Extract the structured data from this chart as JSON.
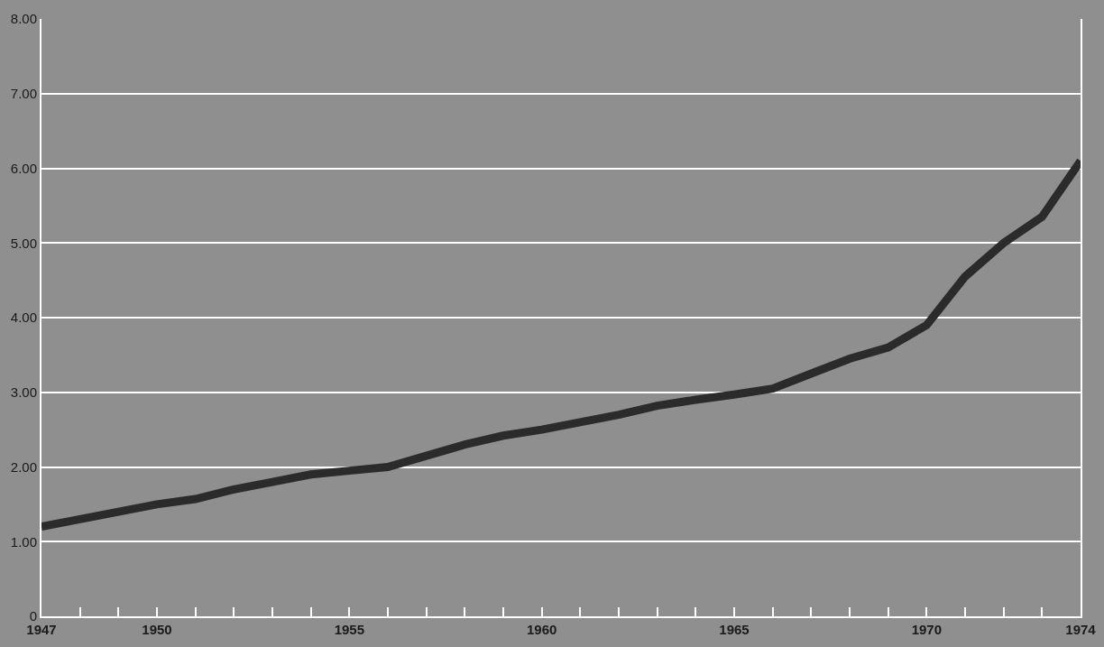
{
  "chart_data": {
    "type": "line",
    "x": [
      1947,
      1948,
      1949,
      1950,
      1951,
      1952,
      1953,
      1954,
      1955,
      1956,
      1957,
      1958,
      1959,
      1960,
      1961,
      1962,
      1963,
      1964,
      1965,
      1966,
      1967,
      1968,
      1969,
      1970,
      1971,
      1972,
      1973,
      1974
    ],
    "series": [
      {
        "color": "#2b2b2b",
        "values": [
          1.2,
          1.3,
          1.4,
          1.5,
          1.57,
          1.7,
          1.8,
          1.9,
          1.95,
          2.0,
          2.15,
          2.3,
          2.42,
          2.5,
          2.6,
          2.7,
          2.82,
          2.9,
          2.97,
          3.05,
          3.25,
          3.45,
          3.6,
          3.9,
          4.55,
          5.0,
          5.35,
          6.1
        ]
      }
    ],
    "xlim": [
      1947,
      1974
    ],
    "xticks": [
      1947,
      {
        "value": 1948,
        "label": null
      },
      {
        "value": 1949,
        "label": null
      },
      1950,
      {
        "value": 1951,
        "label": null
      },
      {
        "value": 1952,
        "label": null
      },
      {
        "value": 1953,
        "label": null
      },
      {
        "value": 1954,
        "label": null
      },
      1955,
      {
        "value": 1956,
        "label": null
      },
      {
        "value": 1957,
        "label": null
      },
      {
        "value": 1958,
        "label": null
      },
      {
        "value": 1959,
        "label": null
      },
      1960,
      {
        "value": 1961,
        "label": null
      },
      {
        "value": 1962,
        "label": null
      },
      {
        "value": 1963,
        "label": null
      },
      {
        "value": 1964,
        "label": null
      },
      1965,
      {
        "value": 1966,
        "label": null
      },
      {
        "value": 1967,
        "label": null
      },
      {
        "value": 1968,
        "label": null
      },
      {
        "value": 1969,
        "label": null
      },
      1970,
      {
        "value": 1971,
        "label": null
      },
      {
        "value": 1972,
        "label": null
      },
      {
        "value": 1973,
        "label": null
      },
      1974
    ],
    "ylim": [
      0,
      8
    ],
    "yticks": [
      0,
      {
        "value": 1,
        "label": "1.00"
      },
      {
        "value": 2,
        "label": "2.00"
      },
      {
        "value": 3,
        "label": "3.00"
      },
      {
        "value": 4,
        "label": "4.00"
      },
      {
        "value": 5,
        "label": "5.00"
      },
      {
        "value": 6,
        "label": "6.00"
      },
      {
        "value": 7,
        "label": "7.00"
      },
      {
        "value": 8,
        "label": "8.00"
      }
    ],
    "grid": "y",
    "marker": "none",
    "line_style": "solid"
  }
}
